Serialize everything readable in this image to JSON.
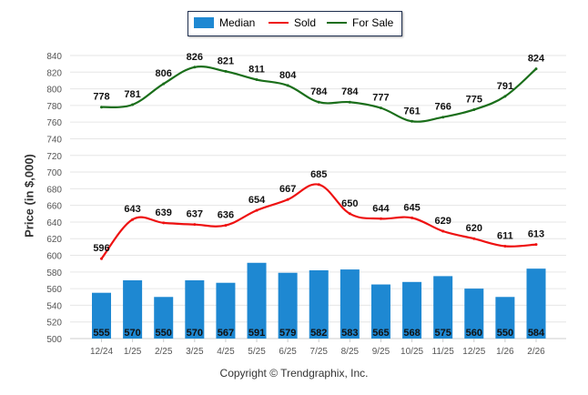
{
  "chart_data": {
    "type": "bar",
    "title": "",
    "xlabel": "",
    "ylabel": "Price (in $,000)",
    "ylim": [
      500,
      840
    ],
    "yticks": [
      500,
      520,
      540,
      560,
      580,
      600,
      620,
      640,
      660,
      680,
      700,
      720,
      740,
      760,
      780,
      800,
      820,
      840
    ],
    "grid": true,
    "legend_position": "top-center",
    "categories": [
      "12/24",
      "1/25",
      "2/25",
      "3/25",
      "4/25",
      "5/25",
      "6/25",
      "7/25",
      "8/25",
      "9/25",
      "10/25",
      "11/25",
      "12/25",
      "1/26",
      "2/26"
    ],
    "series": [
      {
        "name": "Median",
        "type": "bar",
        "color": "#1e88d2",
        "values": [
          555,
          570,
          550,
          570,
          567,
          591,
          579,
          582,
          583,
          565,
          568,
          575,
          560,
          550,
          584
        ]
      },
      {
        "name": "Sold",
        "type": "line",
        "color": "#ee1111",
        "values": [
          596,
          643,
          639,
          637,
          636,
          654,
          667,
          685,
          650,
          644,
          645,
          629,
          620,
          611,
          613
        ]
      },
      {
        "name": "For Sale",
        "type": "line",
        "color": "#1a6e1a",
        "values": [
          778,
          781,
          806,
          826,
          821,
          811,
          804,
          784,
          784,
          777,
          761,
          766,
          775,
          791,
          824
        ]
      }
    ]
  },
  "legend": {
    "items": [
      {
        "label": "Median",
        "color": "#1e88d2"
      },
      {
        "label": "Sold",
        "color": "#ee1111"
      },
      {
        "label": "For Sale",
        "color": "#1a6e1a"
      }
    ]
  },
  "footer": {
    "copyright": "Copyright © Trendgraphix, Inc."
  }
}
